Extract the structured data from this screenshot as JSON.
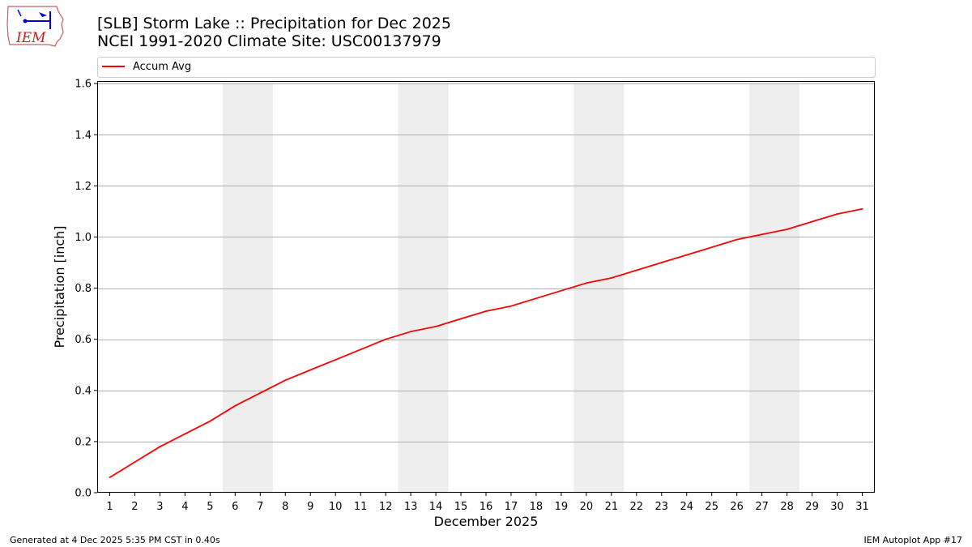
{
  "header": {
    "title_line1": "[SLB] Storm Lake :: Precipitation for Dec 2025",
    "title_line2": "NCEI 1991-2020 Climate Site: USC00137979",
    "logo_text": "IEM"
  },
  "footer": {
    "left": "Generated at 4 Dec 2025 5:35 PM CST in 0.40s",
    "right": "IEM Autoplot App #17"
  },
  "chart_data": {
    "type": "line",
    "title": "[SLB] Storm Lake :: Precipitation for Dec 2025",
    "subtitle": "NCEI 1991-2020 Climate Site: USC00137979",
    "xlabel": "December 2025",
    "ylabel": "Precipitation [inch]",
    "xlim": [
      0.5,
      31.5
    ],
    "ylim": [
      0,
      1.61
    ],
    "x_ticks": [
      1,
      2,
      3,
      4,
      5,
      6,
      7,
      8,
      9,
      10,
      11,
      12,
      13,
      14,
      15,
      16,
      17,
      18,
      19,
      20,
      21,
      22,
      23,
      24,
      25,
      26,
      27,
      28,
      29,
      30,
      31
    ],
    "y_ticks": [
      "0.0",
      "0.2",
      "0.4",
      "0.6",
      "0.8",
      "1.0",
      "1.2",
      "1.4",
      "1.6"
    ],
    "y_tick_values": [
      0,
      0.2,
      0.4,
      0.6,
      0.8,
      1.0,
      1.2,
      1.4,
      1.6
    ],
    "grid": "horizontal",
    "legend_position": "top",
    "weekend_shading": [
      [
        6,
        7
      ],
      [
        13,
        14
      ],
      [
        20,
        21
      ],
      [
        27,
        28
      ]
    ],
    "shading_color": "#eeeeee",
    "series": [
      {
        "name": "Accum Avg",
        "color": "#ff0000",
        "x": [
          1,
          2,
          3,
          4,
          5,
          6,
          7,
          8,
          9,
          10,
          11,
          12,
          13,
          14,
          15,
          16,
          17,
          18,
          19,
          20,
          21,
          22,
          23,
          24,
          25,
          26,
          27,
          28,
          29,
          30,
          31
        ],
        "values": [
          0.06,
          0.12,
          0.18,
          0.23,
          0.28,
          0.34,
          0.39,
          0.44,
          0.48,
          0.52,
          0.56,
          0.6,
          0.63,
          0.65,
          0.68,
          0.71,
          0.73,
          0.76,
          0.79,
          0.82,
          0.84,
          0.87,
          0.9,
          0.93,
          0.96,
          0.99,
          1.01,
          1.03,
          1.06,
          1.09,
          1.11
        ]
      }
    ]
  }
}
